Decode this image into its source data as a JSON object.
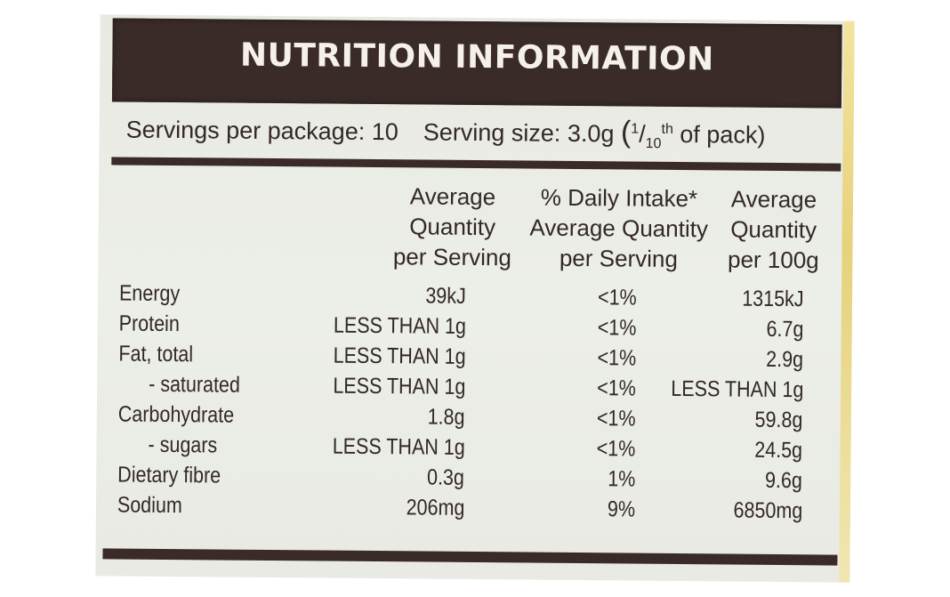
{
  "panel": {
    "title": "NUTRITION INFORMATION",
    "servings_per_package": "Servings per package: 10",
    "serving_size": "Serving size: 3.0g",
    "serving_fraction_open": "(",
    "serving_fraction_num": "1",
    "serving_fraction_den": "10",
    "serving_fraction_suffix": "th",
    "serving_fraction_rest": " of pack)"
  },
  "columns": {
    "per_serving": "Average\nQuantity\nper Serving",
    "daily_intake": "% Daily Intake*\nAverage Quantity\nper Serving",
    "per_100g": "Average\nQuantity\nper 100g"
  },
  "rows": [
    {
      "name": "Energy",
      "per_serving": "39kJ",
      "daily_intake": "<1%",
      "per_100g": "1315kJ"
    },
    {
      "name": "Protein",
      "per_serving": "LESS THAN 1g",
      "daily_intake": "<1%",
      "per_100g": "6.7g"
    },
    {
      "name": "Fat, total",
      "per_serving": "LESS THAN 1g",
      "daily_intake": "<1%",
      "per_100g": "2.9g"
    },
    {
      "name": "- saturated",
      "per_serving": "LESS THAN 1g",
      "daily_intake": "<1%",
      "per_100g": "LESS THAN 1g"
    },
    {
      "name": "Carbohydrate",
      "per_serving": "1.8g",
      "daily_intake": "<1%",
      "per_100g": "59.8g"
    },
    {
      "name": "- sugars",
      "per_serving": "LESS THAN 1g",
      "daily_intake": "<1%",
      "per_100g": "24.5g"
    },
    {
      "name": "Dietary fibre",
      "per_serving": "0.3g",
      "daily_intake": "1%",
      "per_100g": "9.6g"
    },
    {
      "name": "Sodium",
      "per_serving": "206mg",
      "daily_intake": "9%",
      "per_100g": "6850mg"
    }
  ]
}
